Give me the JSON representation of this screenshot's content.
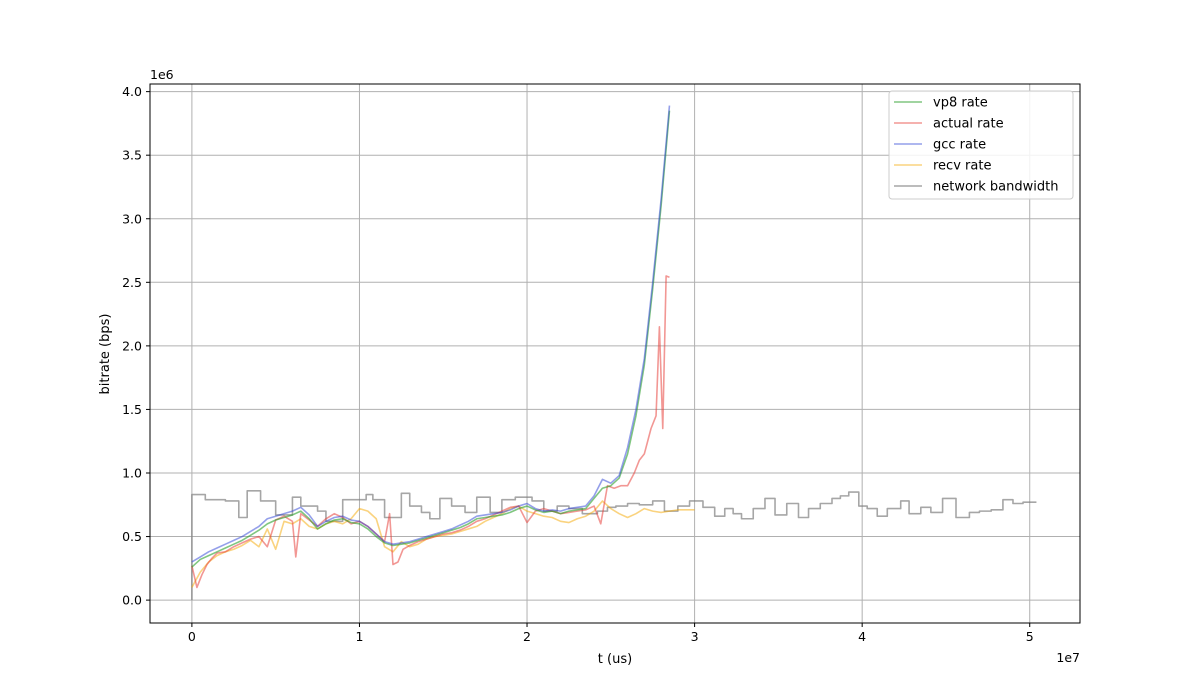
{
  "chart_data": {
    "type": "line",
    "xlabel": "t (us)",
    "ylabel": "bitrate (bps)",
    "x_offset_text": "1e7",
    "y_offset_text": "1e6",
    "xlim": [
      -2500000,
      53000000
    ],
    "ylim": [
      -180000,
      4060000
    ],
    "xticks": [
      0,
      10000000,
      20000000,
      30000000,
      40000000,
      50000000
    ],
    "xtick_labels": [
      "0",
      "1",
      "2",
      "3",
      "4",
      "5"
    ],
    "yticks": [
      0,
      500000,
      1000000,
      1500000,
      2000000,
      2500000,
      3000000,
      3500000,
      4000000
    ],
    "ytick_labels": [
      "0.0",
      "0.5",
      "1.0",
      "1.5",
      "2.0",
      "2.5",
      "3.0",
      "3.5",
      "4.0"
    ],
    "grid": true,
    "legend_position": "top-right",
    "series": [
      {
        "name": "vp8 rate",
        "color": "#2ca02c",
        "opacity": 0.6,
        "x": [
          0,
          500000,
          1000000,
          1500000,
          2000000,
          2500000,
          3000000,
          3500000,
          4000000,
          4500000,
          5000000,
          5500000,
          6000000,
          6500000,
          7000000,
          7500000,
          8000000,
          8500000,
          9000000,
          9500000,
          10000000,
          10500000,
          11000000,
          11500000,
          12000000,
          12500000,
          13000000,
          13500000,
          14000000,
          14500000,
          15000000,
          15500000,
          16000000,
          16500000,
          17000000,
          17500000,
          18000000,
          18500000,
          19000000,
          19500000,
          20000000,
          20500000,
          21000000,
          21500000,
          22000000,
          22500000,
          23000000,
          23500000,
          24000000,
          24500000,
          25000000,
          25500000,
          26000000,
          26500000,
          27000000,
          27500000,
          28000000,
          28500000
        ],
        "values": [
          260000,
          320000,
          350000,
          380000,
          410000,
          440000,
          470000,
          510000,
          550000,
          600000,
          630000,
          650000,
          670000,
          700000,
          640000,
          560000,
          600000,
          630000,
          640000,
          610000,
          600000,
          560000,
          500000,
          450000,
          430000,
          440000,
          450000,
          470000,
          490000,
          510000,
          530000,
          550000,
          570000,
          600000,
          640000,
          650000,
          660000,
          670000,
          690000,
          720000,
          740000,
          710000,
          690000,
          700000,
          680000,
          700000,
          710000,
          720000,
          800000,
          880000,
          900000,
          960000,
          1150000,
          1450000,
          1850000,
          2450000,
          3100000,
          3850000
        ]
      },
      {
        "name": "actual rate",
        "color": "#e8413c",
        "opacity": 0.55,
        "x": [
          0,
          300000,
          600000,
          900000,
          1200000,
          1500000,
          2000000,
          2500000,
          3000000,
          3500000,
          4000000,
          4500000,
          5000000,
          5500000,
          6000000,
          6200000,
          6500000,
          7000000,
          7500000,
          8000000,
          8500000,
          9000000,
          9500000,
          10000000,
          10500000,
          11000000,
          11500000,
          11800000,
          12000000,
          12300000,
          12600000,
          13000000,
          13500000,
          14000000,
          14500000,
          15000000,
          15500000,
          16000000,
          16500000,
          17000000,
          17500000,
          18000000,
          18500000,
          19000000,
          19500000,
          20000000,
          20500000,
          21000000,
          21500000,
          22000000,
          22500000,
          23000000,
          23500000,
          24000000,
          24400000,
          24800000,
          25200000,
          25600000,
          26000000,
          26400000,
          26700000,
          27000000,
          27400000,
          27700000,
          27900000,
          28100000,
          28300000,
          28500000
        ],
        "values": [
          270000,
          100000,
          200000,
          280000,
          330000,
          370000,
          380000,
          420000,
          450000,
          480000,
          500000,
          420000,
          630000,
          660000,
          620000,
          340000,
          680000,
          630000,
          580000,
          640000,
          680000,
          650000,
          600000,
          620000,
          580000,
          520000,
          460000,
          680000,
          280000,
          300000,
          400000,
          430000,
          460000,
          480000,
          500000,
          520000,
          530000,
          550000,
          580000,
          620000,
          640000,
          670000,
          700000,
          730000,
          740000,
          610000,
          700000,
          720000,
          700000,
          680000,
          690000,
          700000,
          710000,
          740000,
          600000,
          900000,
          880000,
          900000,
          900000,
          1000000,
          1100000,
          1150000,
          1350000,
          1450000,
          2150000,
          1350000,
          2550000,
          2540000
        ]
      },
      {
        "name": "gcc rate",
        "color": "#2a3fd6",
        "opacity": 0.5,
        "x": [
          0,
          500000,
          1000000,
          1500000,
          2000000,
          2500000,
          3000000,
          3500000,
          4000000,
          4500000,
          5000000,
          5500000,
          6000000,
          6500000,
          7000000,
          7500000,
          8000000,
          8500000,
          9000000,
          9500000,
          10000000,
          10500000,
          11000000,
          11500000,
          12000000,
          12500000,
          13000000,
          13500000,
          14000000,
          14500000,
          15000000,
          15500000,
          16000000,
          16500000,
          17000000,
          17500000,
          18000000,
          18500000,
          19000000,
          19500000,
          20000000,
          20500000,
          21000000,
          21500000,
          22000000,
          22500000,
          23000000,
          23500000,
          24000000,
          24500000,
          25000000,
          25500000,
          26000000,
          26500000,
          27000000,
          27500000,
          28000000,
          28500000
        ],
        "values": [
          300000,
          340000,
          380000,
          410000,
          440000,
          470000,
          500000,
          540000,
          580000,
          640000,
          660000,
          680000,
          700000,
          730000,
          670000,
          580000,
          620000,
          650000,
          660000,
          630000,
          620000,
          580000,
          520000,
          460000,
          440000,
          450000,
          460000,
          480000,
          500000,
          520000,
          540000,
          560000,
          590000,
          620000,
          660000,
          670000,
          680000,
          690000,
          710000,
          740000,
          760000,
          720000,
          700000,
          710000,
          700000,
          720000,
          730000,
          740000,
          820000,
          950000,
          920000,
          980000,
          1200000,
          1500000,
          1900000,
          2500000,
          3150000,
          3890000
        ]
      },
      {
        "name": "recv rate",
        "color": "#f5a800",
        "opacity": 0.5,
        "x": [
          0,
          500000,
          1000000,
          1500000,
          2000000,
          2500000,
          3000000,
          3500000,
          4000000,
          4500000,
          5000000,
          5500000,
          6000000,
          6500000,
          7000000,
          7500000,
          8000000,
          8500000,
          9000000,
          9500000,
          10000000,
          10500000,
          11000000,
          11500000,
          12000000,
          12500000,
          13000000,
          13500000,
          14000000,
          14500000,
          15000000,
          15500000,
          16000000,
          16500000,
          17000000,
          17500000,
          18000000,
          18500000,
          19000000,
          19500000,
          20000000,
          20500000,
          21000000,
          21500000,
          22000000,
          22500000,
          23000000,
          23500000,
          24000000,
          24500000,
          25000000,
          25500000,
          26000000,
          26500000,
          27000000,
          27500000,
          28000000,
          28500000,
          29000000,
          29500000,
          30000000
        ],
        "values": [
          100000,
          220000,
          300000,
          350000,
          380000,
          400000,
          430000,
          470000,
          420000,
          560000,
          400000,
          620000,
          600000,
          640000,
          580000,
          560000,
          600000,
          620000,
          600000,
          640000,
          720000,
          700000,
          640000,
          420000,
          380000,
          460000,
          420000,
          440000,
          480000,
          500000,
          510000,
          520000,
          540000,
          560000,
          580000,
          620000,
          650000,
          680000,
          720000,
          740000,
          700000,
          680000,
          660000,
          650000,
          620000,
          610000,
          640000,
          660000,
          700000,
          780000,
          720000,
          680000,
          650000,
          680000,
          720000,
          700000,
          690000,
          700000,
          710000,
          710000,
          710000
        ]
      },
      {
        "name": "network bandwidth",
        "color": "#808080",
        "opacity": 0.7,
        "step": true,
        "x": [
          0,
          0,
          800000,
          2000000,
          2800000,
          3300000,
          4100000,
          5000000,
          6000000,
          6500000,
          7500000,
          8000000,
          9000000,
          10400000,
          10800000,
          11500000,
          12500000,
          13000000,
          13700000,
          14200000,
          14800000,
          15500000,
          16300000,
          17000000,
          17800000,
          18500000,
          19300000,
          20300000,
          21000000,
          21800000,
          22500000,
          23300000,
          24200000,
          24800000,
          25300000,
          26000000,
          26700000,
          27500000,
          28200000,
          29000000,
          29700000,
          30500000,
          31200000,
          31800000,
          32300000,
          32800000,
          33500000,
          34200000,
          34800000,
          35500000,
          36200000,
          36800000,
          37500000,
          38200000,
          38700000,
          39200000,
          39800000,
          40300000,
          40900000,
          41500000,
          42300000,
          42800000,
          43500000,
          44100000,
          44800000,
          45600000,
          46400000,
          47000000,
          47700000,
          48400000,
          49000000,
          49600000,
          50400000
        ],
        "values": [
          0,
          830000,
          790000,
          780000,
          650000,
          860000,
          780000,
          670000,
          810000,
          740000,
          700000,
          620000,
          790000,
          830000,
          790000,
          650000,
          840000,
          740000,
          690000,
          640000,
          800000,
          740000,
          690000,
          810000,
          690000,
          790000,
          810000,
          780000,
          700000,
          740000,
          720000,
          680000,
          700000,
          730000,
          740000,
          760000,
          750000,
          780000,
          700000,
          740000,
          780000,
          730000,
          660000,
          720000,
          680000,
          640000,
          720000,
          800000,
          670000,
          760000,
          650000,
          720000,
          760000,
          800000,
          820000,
          850000,
          740000,
          720000,
          660000,
          720000,
          780000,
          680000,
          730000,
          690000,
          800000,
          650000,
          690000,
          700000,
          710000,
          790000,
          760000,
          770000,
          770000
        ]
      }
    ]
  }
}
